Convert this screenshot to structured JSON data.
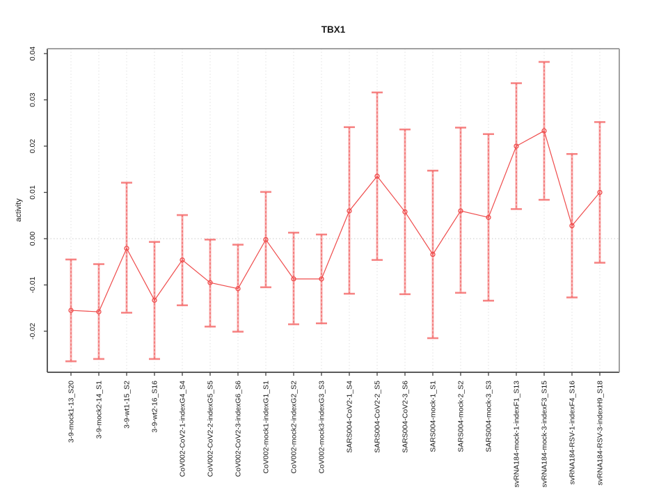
{
  "page": {
    "background": "#ffffff"
  },
  "chart_data": {
    "type": "line",
    "subtype": "points-with-error-bars",
    "title": "TBX1",
    "xlabel": "",
    "ylabel": "activity",
    "ylim": [
      -0.029,
      0.041
    ],
    "yticks": [
      0.04,
      0.03,
      0.02,
      0.01,
      0.0,
      -0.01,
      -0.02
    ],
    "ytick_labels": [
      "0.04",
      "0.03",
      "0.02",
      "0.01",
      "0.00",
      "-0.01",
      "-0.02"
    ],
    "grid": {
      "vertical_dotted_per_category": true,
      "horizontal_zero_line_dotted": true,
      "other_horizontal_gridlines": false
    },
    "legend_position": "none",
    "categories": [
      "3-9-mock1-13_S20",
      "3-9-mock2-14_S1",
      "3-9-wt1-15_S2",
      "3-9-wt2-16_S16",
      "CoV002-CoV2-1-indexG4_S4",
      "CoV002-CoV2-2-indexG5_S5",
      "CoV002-CoV2-3-indexG6_S6",
      "CoV002-mock1-indexG1_S1",
      "CoV002-mock2-indexG2_S2",
      "CoV002-mock3-indexG3_S3",
      "SARS004-CoV2-1_S4",
      "SARS004-CoV2-2_S5",
      "SARS004-CoV2-3_S6",
      "SARS004-mock-1_S1",
      "SARS004-mock-2_S2",
      "SARS004-mock-3_S3",
      "svRNA184-mock-1-indexF1_S13",
      "svRNA184-mock-3-indexF3_S15",
      "svRNA184-RSV-1-indexF4_S16",
      "svRNA184-RSV-3-indexH9_S18"
    ],
    "series": [
      {
        "name": "activity",
        "values": [
          -0.0155,
          -0.0158,
          -0.0021,
          -0.0133,
          -0.0046,
          -0.0095,
          -0.0108,
          -0.0002,
          -0.0087,
          -0.0087,
          0.006,
          0.0135,
          0.0058,
          -0.0034,
          0.006,
          0.0046,
          0.02,
          0.0233,
          0.0028,
          0.01
        ],
        "lower": [
          -0.0265,
          -0.026,
          -0.016,
          -0.026,
          -0.0144,
          -0.019,
          -0.0201,
          -0.0105,
          -0.0185,
          -0.0183,
          -0.0119,
          -0.0046,
          -0.012,
          -0.0215,
          -0.0117,
          -0.0134,
          0.0064,
          0.0084,
          -0.0127,
          -0.0052
        ],
        "upper": [
          -0.0045,
          -0.0055,
          0.0121,
          -0.0007,
          0.0051,
          -0.0002,
          -0.0013,
          0.0101,
          0.0013,
          0.0009,
          0.0241,
          0.0316,
          0.0236,
          0.0147,
          0.024,
          0.0226,
          0.0336,
          0.0382,
          0.0183,
          0.0252
        ]
      }
    ],
    "colors": {
      "point": "#ef4b4b",
      "line": "#ef4b4b",
      "error_bar_fill": "rgba(244,110,110,0.55)",
      "error_bar_dash": "rgba(236,62,62,0.85)",
      "error_bar_cap": "rgba(244,110,110,0.85)",
      "grid": "#e0e0e0",
      "zero_line": "#c9c9c9",
      "axis_tick": "#404040",
      "panel_border_dark": "#5a5a5a",
      "panel_border_light": "#a0a0a0",
      "text": "#1a1a1a"
    }
  }
}
